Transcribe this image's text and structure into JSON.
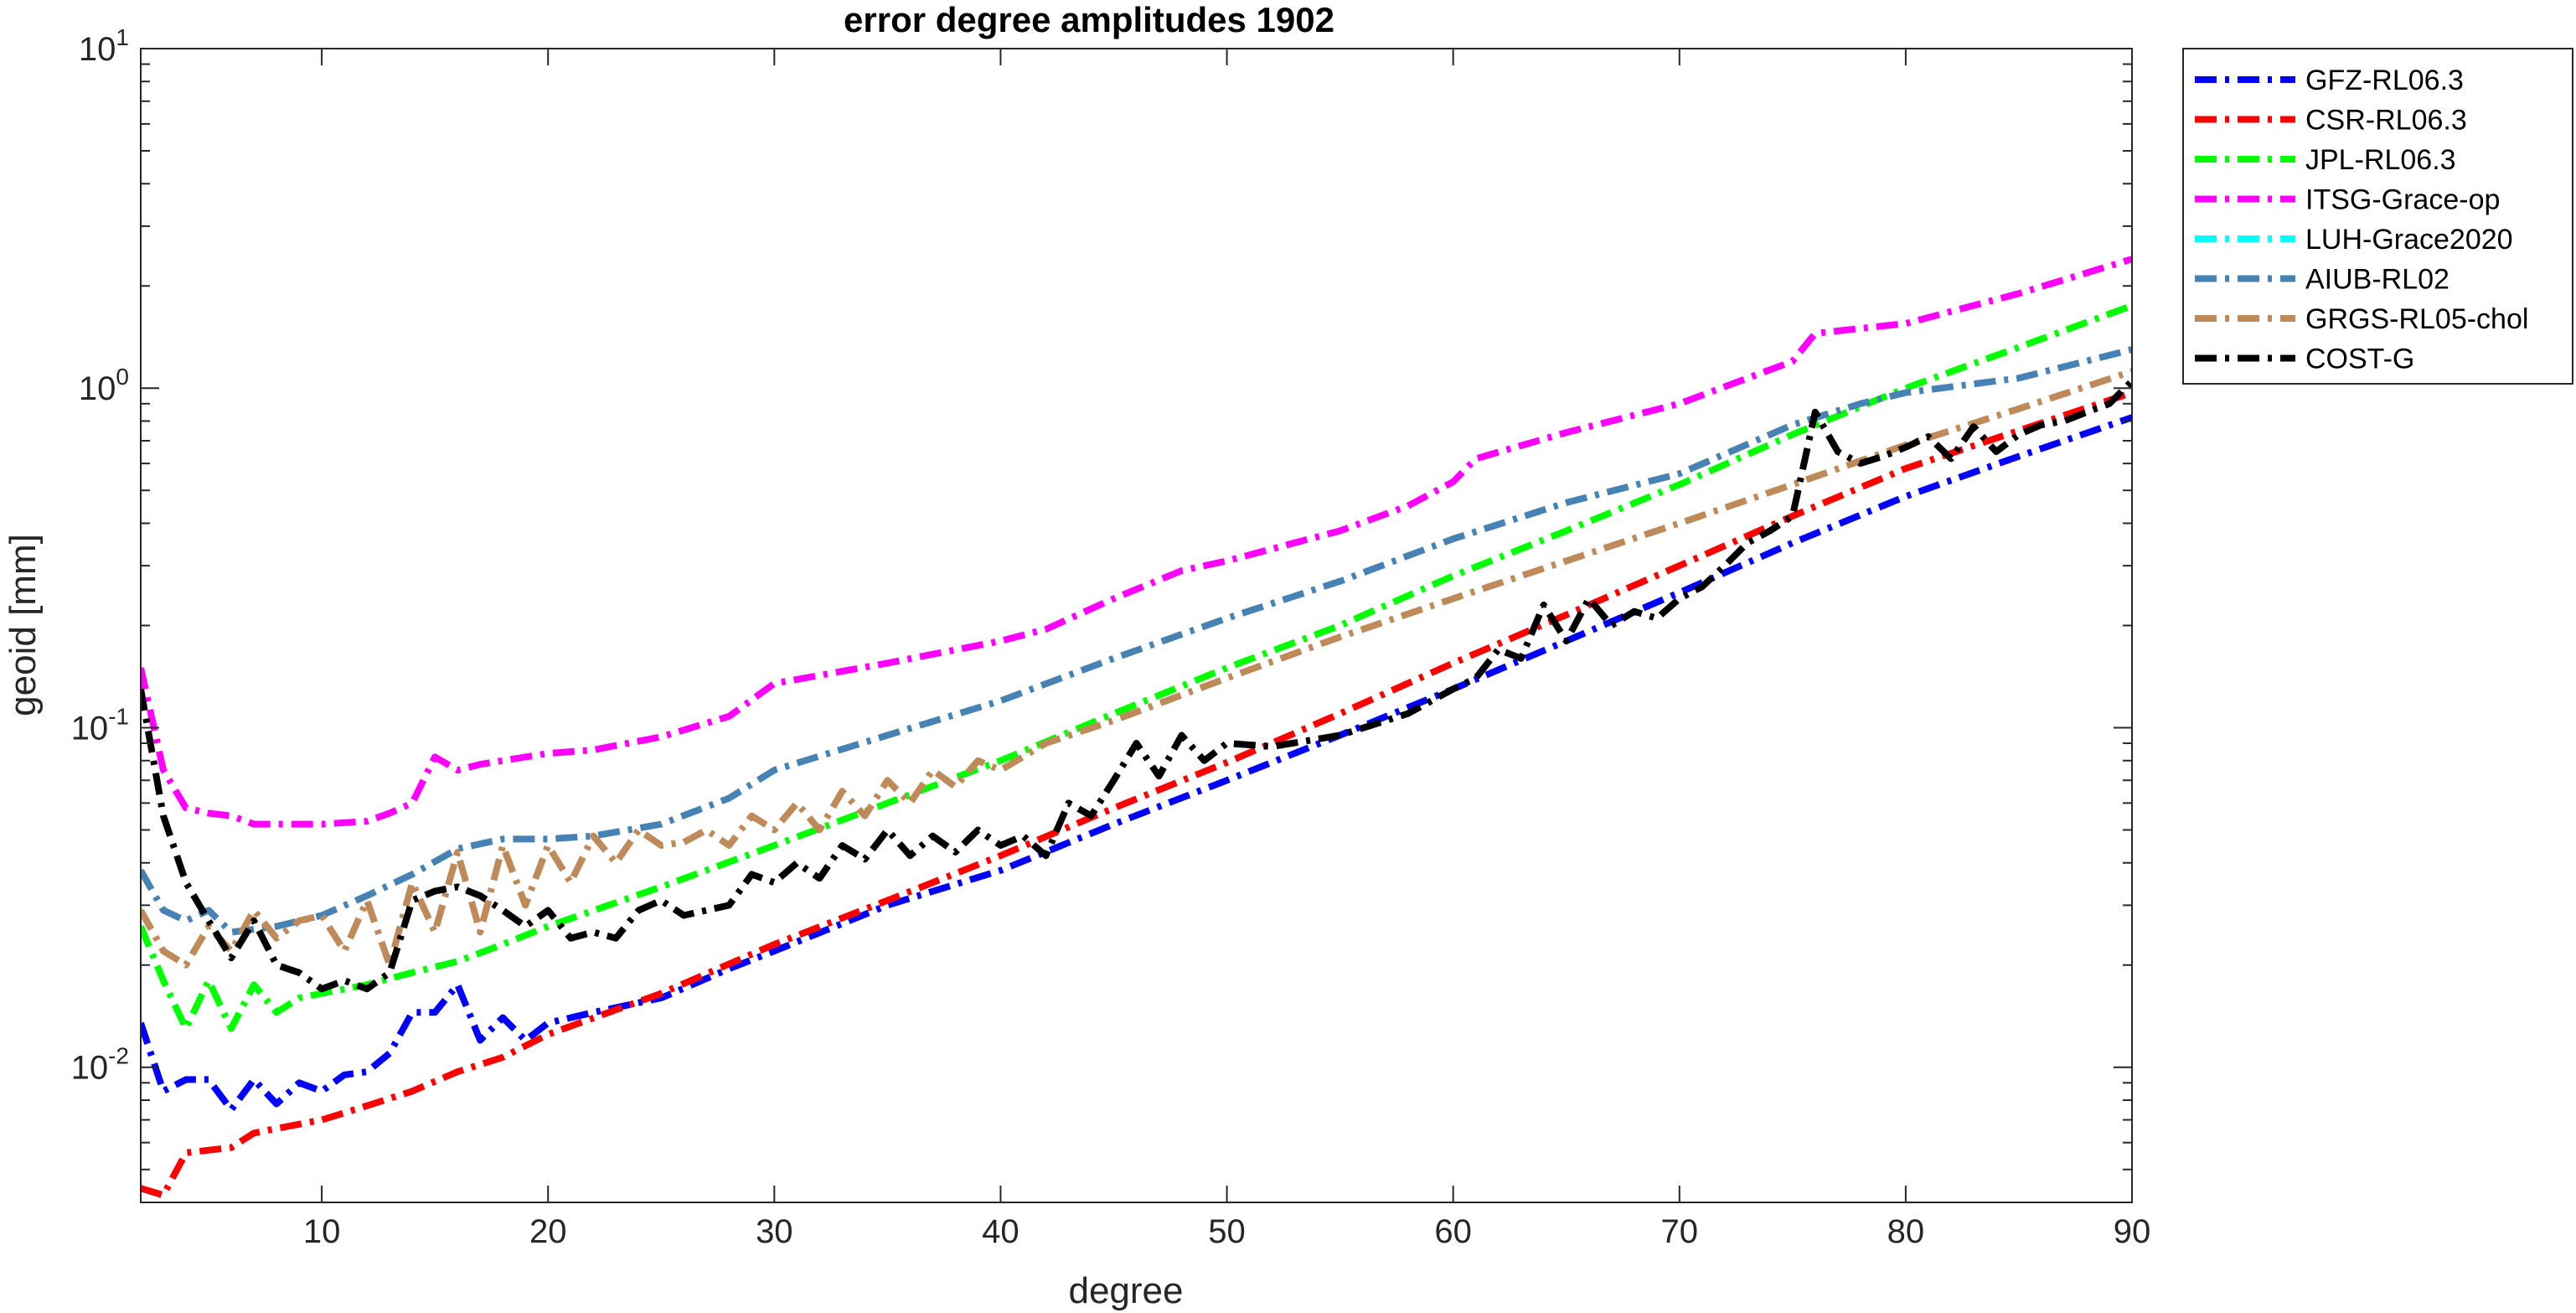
{
  "chart_data": {
    "type": "line",
    "title": "error degree amplitudes 1902",
    "xlabel": "degree",
    "ylabel": "geoid [mm]",
    "xlim": [
      2,
      90
    ],
    "ylim": [
      0.004,
      10
    ],
    "yscale": "log",
    "x_ticks": [
      10,
      20,
      30,
      40,
      50,
      60,
      70,
      80,
      90
    ],
    "y_ticks": [
      {
        "value": 0.01,
        "base": "10",
        "exp": "-2"
      },
      {
        "value": 0.1,
        "base": "10",
        "exp": "-1"
      },
      {
        "value": 1,
        "base": "10",
        "exp": "0"
      },
      {
        "value": 10,
        "base": "10",
        "exp": "1"
      }
    ],
    "grid": false,
    "line_style": "dash-dot",
    "legend_position": "outside-top-right",
    "series": [
      {
        "name": "GFZ-RL06.3",
        "color": "#0000ff",
        "x": [
          2,
          3,
          4,
          5,
          6,
          7,
          8,
          9,
          10,
          11,
          12,
          13,
          14,
          15,
          16,
          17,
          18,
          19,
          20,
          22,
          25,
          28,
          30,
          35,
          40,
          45,
          50,
          55,
          60,
          65,
          70,
          75,
          80,
          85,
          90
        ],
        "y": [
          0.0135,
          0.0085,
          0.0092,
          0.0092,
          0.0075,
          0.0092,
          0.0078,
          0.009,
          0.0085,
          0.0095,
          0.0097,
          0.011,
          0.0145,
          0.0145,
          0.0175,
          0.012,
          0.014,
          0.012,
          0.0135,
          0.0145,
          0.016,
          0.0195,
          0.022,
          0.03,
          0.038,
          0.052,
          0.07,
          0.095,
          0.13,
          0.18,
          0.25,
          0.35,
          0.48,
          0.63,
          0.82
        ]
      },
      {
        "name": "CSR-RL06.3",
        "color": "#ff0000",
        "x": [
          2,
          3,
          4,
          5,
          6,
          7,
          8,
          10,
          12,
          14,
          16,
          18,
          20,
          25,
          30,
          35,
          40,
          45,
          50,
          55,
          60,
          65,
          70,
          75,
          80,
          85,
          90
        ],
        "y": [
          0.0044,
          0.0042,
          0.0056,
          0.0057,
          0.0058,
          0.0064,
          0.0066,
          0.007,
          0.0077,
          0.0085,
          0.0097,
          0.0107,
          0.0125,
          0.0165,
          0.023,
          0.031,
          0.042,
          0.058,
          0.079,
          0.11,
          0.155,
          0.215,
          0.3,
          0.42,
          0.58,
          0.75,
          0.97
        ]
      },
      {
        "name": "JPL-RL06.3",
        "color": "#00ff00",
        "x": [
          2,
          3,
          4,
          5,
          6,
          7,
          8,
          9,
          10,
          12,
          14,
          16,
          18,
          20,
          25,
          30,
          35,
          40,
          45,
          50,
          55,
          60,
          65,
          70,
          75,
          80,
          85,
          90
        ],
        "y": [
          0.026,
          0.018,
          0.013,
          0.018,
          0.013,
          0.0175,
          0.0145,
          0.016,
          0.0165,
          0.0175,
          0.019,
          0.0205,
          0.023,
          0.026,
          0.034,
          0.045,
          0.06,
          0.08,
          0.11,
          0.15,
          0.2,
          0.28,
          0.38,
          0.52,
          0.73,
          1.0,
          1.32,
          1.75
        ]
      },
      {
        "name": "ITSG-Grace-op",
        "color": "#ff00ff",
        "x": [
          2,
          3,
          4,
          5,
          6,
          7,
          8,
          10,
          12,
          13,
          14,
          15,
          16,
          17,
          18,
          20,
          22,
          25,
          28,
          30,
          35,
          40,
          42,
          45,
          48,
          50,
          55,
          58,
          60,
          61,
          65,
          70,
          75,
          76,
          80,
          85,
          90
        ],
        "y": [
          0.15,
          0.075,
          0.058,
          0.056,
          0.055,
          0.052,
          0.052,
          0.052,
          0.053,
          0.056,
          0.06,
          0.082,
          0.075,
          0.078,
          0.08,
          0.084,
          0.086,
          0.094,
          0.108,
          0.135,
          0.155,
          0.18,
          0.195,
          0.24,
          0.29,
          0.31,
          0.38,
          0.45,
          0.53,
          0.62,
          0.74,
          0.9,
          1.2,
          1.45,
          1.55,
          1.9,
          2.4
        ]
      },
      {
        "name": "LUH-Grace2020",
        "color": "#00ffff",
        "x": [],
        "y": []
      },
      {
        "name": "AIUB-RL02",
        "color": "#4682b4",
        "x": [
          2,
          3,
          4,
          5,
          6,
          8,
          10,
          12,
          14,
          16,
          18,
          20,
          22,
          25,
          28,
          30,
          35,
          40,
          45,
          50,
          55,
          60,
          65,
          70,
          75,
          78,
          80,
          85,
          90
        ],
        "y": [
          0.038,
          0.029,
          0.027,
          0.029,
          0.025,
          0.026,
          0.028,
          0.032,
          0.037,
          0.044,
          0.047,
          0.047,
          0.048,
          0.052,
          0.062,
          0.075,
          0.095,
          0.12,
          0.16,
          0.21,
          0.27,
          0.36,
          0.46,
          0.56,
          0.78,
          0.9,
          0.97,
          1.07,
          1.3
        ]
      },
      {
        "name": "GRGS-RL05-chol",
        "color": "#bf8a5a",
        "x": [
          2,
          3,
          4,
          5,
          6,
          7,
          8,
          9,
          10,
          11,
          12,
          13,
          14,
          15,
          16,
          17,
          18,
          19,
          20,
          21,
          22,
          23,
          24,
          25,
          26,
          27,
          28,
          29,
          30,
          31,
          32,
          33,
          34,
          35,
          36,
          37,
          38,
          39,
          40,
          42,
          45,
          50,
          55,
          60,
          65,
          70,
          75,
          80,
          85,
          90
        ],
        "y": [
          0.029,
          0.022,
          0.02,
          0.026,
          0.022,
          0.029,
          0.024,
          0.027,
          0.028,
          0.022,
          0.031,
          0.02,
          0.035,
          0.025,
          0.043,
          0.025,
          0.045,
          0.03,
          0.045,
          0.035,
          0.048,
          0.04,
          0.05,
          0.045,
          0.046,
          0.05,
          0.045,
          0.055,
          0.05,
          0.06,
          0.05,
          0.065,
          0.055,
          0.07,
          0.06,
          0.075,
          0.067,
          0.08,
          0.075,
          0.09,
          0.105,
          0.14,
          0.185,
          0.24,
          0.31,
          0.4,
          0.52,
          0.68,
          0.87,
          1.12
        ]
      },
      {
        "name": "COST-G",
        "color": "#000000",
        "x": [
          2,
          3,
          4,
          5,
          6,
          7,
          8,
          9,
          10,
          11,
          12,
          13,
          14,
          15,
          16,
          17,
          18,
          19,
          20,
          21,
          22,
          23,
          24,
          25,
          26,
          27,
          28,
          29,
          30,
          31,
          32,
          33,
          34,
          35,
          36,
          37,
          38,
          39,
          40,
          41,
          42,
          43,
          44,
          45,
          46,
          47,
          48,
          49,
          50,
          52,
          55,
          58,
          60,
          61,
          62,
          63,
          64,
          65,
          66,
          67,
          68,
          69,
          70,
          71,
          72,
          73,
          74,
          75,
          76,
          77,
          78,
          79,
          80,
          81,
          82,
          83,
          84,
          85,
          86,
          87,
          88,
          89,
          90
        ],
        "y": [
          0.13,
          0.055,
          0.035,
          0.027,
          0.021,
          0.027,
          0.02,
          0.019,
          0.017,
          0.018,
          0.017,
          0.019,
          0.031,
          0.033,
          0.034,
          0.032,
          0.029,
          0.026,
          0.029,
          0.024,
          0.025,
          0.024,
          0.029,
          0.031,
          0.028,
          0.029,
          0.03,
          0.037,
          0.035,
          0.04,
          0.036,
          0.045,
          0.041,
          0.05,
          0.042,
          0.048,
          0.043,
          0.05,
          0.045,
          0.048,
          0.042,
          0.06,
          0.055,
          0.07,
          0.09,
          0.072,
          0.095,
          0.08,
          0.09,
          0.088,
          0.095,
          0.11,
          0.13,
          0.14,
          0.17,
          0.16,
          0.23,
          0.18,
          0.24,
          0.2,
          0.22,
          0.21,
          0.24,
          0.26,
          0.3,
          0.35,
          0.38,
          0.42,
          0.85,
          0.65,
          0.6,
          0.63,
          0.67,
          0.72,
          0.62,
          0.77,
          0.65,
          0.73,
          0.78,
          0.8,
          0.85,
          0.9,
          1.05
        ]
      }
    ]
  }
}
